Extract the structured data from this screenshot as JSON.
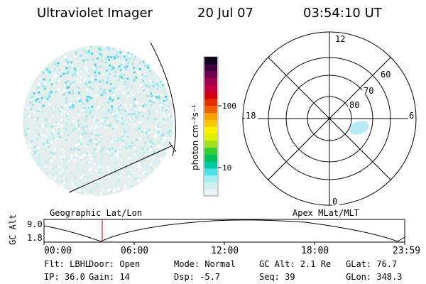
{
  "header": {
    "title": "Ultraviolet Imager",
    "date": "20 Jul 07",
    "time": "03:54:10 UT"
  },
  "colorbar": {
    "label": "photon cm⁻²s⁻¹",
    "ticks": [
      "100",
      "10"
    ],
    "colors": [
      "#e8f4f8",
      "#cfeff2",
      "#a0eef0",
      "#49e0e6",
      "#00c8a0",
      "#00c060",
      "#30d030",
      "#a0e020",
      "#e0f000",
      "#fff200",
      "#f8c800",
      "#f8a000",
      "#f06000",
      "#e03000",
      "#d00010",
      "#c00040",
      "#a00050",
      "#700050",
      "#400040",
      "#100020"
    ]
  },
  "geo_panel": {
    "label": "Geographic Lat/Lon"
  },
  "polar_panel": {
    "label": "Apex MLat/MLT",
    "mlt_labels": {
      "top": "12",
      "bottom": "0",
      "left": "18",
      "right": "6"
    },
    "lat_labels": [
      "60",
      "70",
      "80"
    ]
  },
  "timeline": {
    "ylabel": "GC Alt",
    "y_ticks": [
      "9.0",
      "1.8"
    ],
    "x_ticks": [
      "00:00",
      "06:00",
      "12:00",
      "18:00",
      "23:59"
    ],
    "marker_time": "03:54",
    "marker_color": "#cc2020"
  },
  "footer": {
    "row1": {
      "flt": "Flt: LBHL",
      "door": "Door: Open",
      "mode": "Mode: Normal",
      "gcalt": "GC Alt: 2.1 Re",
      "glat": "GLat:  76.7"
    },
    "row2": {
      "ip": "IP: 36.0",
      "gain": "Gain: 14",
      "dsp": "Dsp:   -5.7",
      "seq": "Seq: 39",
      "glon": "GLon: 348.3"
    }
  }
}
